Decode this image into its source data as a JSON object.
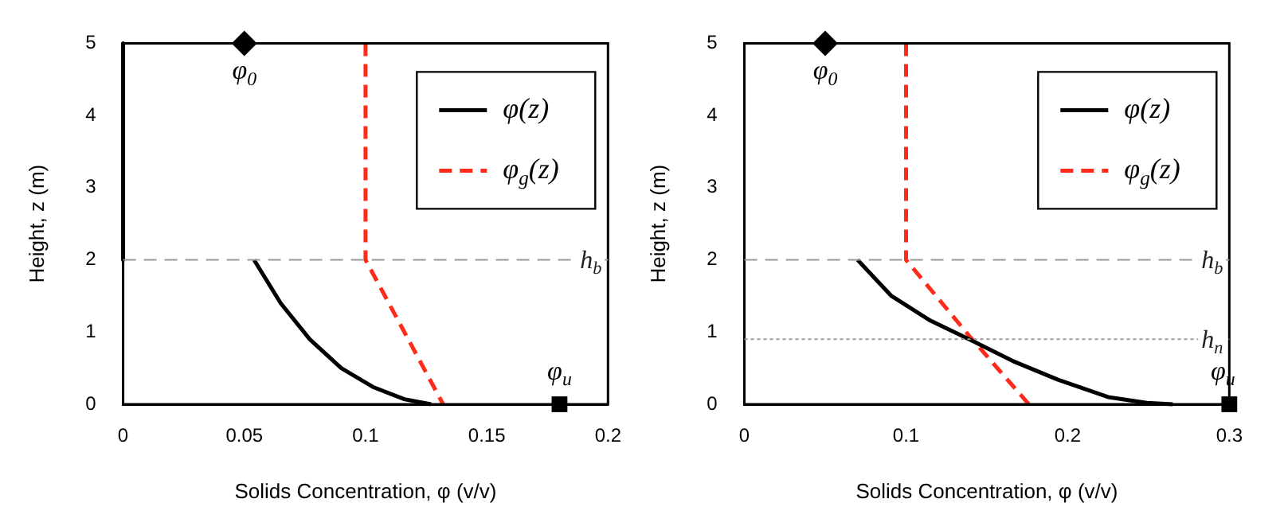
{
  "chart_data": [
    {
      "type": "line",
      "xlabel": "Solids Concentration, φ (v/v)",
      "ylabel": "Height, z (m)",
      "xlim": [
        0,
        0.2
      ],
      "ylim": [
        0,
        5
      ],
      "xticks": [
        0,
        0.05,
        0.1,
        0.15,
        0.2
      ],
      "yticks": [
        0,
        1,
        2,
        3,
        4,
        5
      ],
      "grid": false,
      "legend": "top right",
      "series": [
        {
          "type": "line",
          "color": "#000000",
          "line_style": "solid",
          "x": [
            0,
            0
          ],
          "values": [
            5,
            2
          ]
        },
        {
          "name": "φ(z)",
          "color": "#000000",
          "line_style": "solid",
          "x": [
            0.054,
            0.065,
            0.077,
            0.09,
            0.103,
            0.116,
            0.127
          ],
          "values": [
            2,
            1.4,
            0.9,
            0.5,
            0.24,
            0.07,
            0
          ]
        },
        {
          "name": "φ$_{g}$(z)",
          "color": "#ff2a1a",
          "line_style": "dashed",
          "x": [
            0.1,
            0.1,
            0.108,
            0.116,
            0.124,
            0.132
          ],
          "values": [
            5,
            2,
            1.5,
            1,
            0.5,
            0
          ]
        },
        {
          "type": "scatter",
          "marker": "diamond",
          "color": "#000000",
          "x": [
            0.05
          ],
          "values": [
            5
          ]
        },
        {
          "type": "scatter",
          "marker": "square",
          "color": "#000000",
          "x": [
            0.18
          ],
          "values": [
            0
          ]
        }
      ],
      "ref_lines": [
        {
          "axis": "y",
          "value": 2,
          "label": "h$_{b}$",
          "color": "#999999",
          "line_style": "dashed"
        }
      ],
      "annotations": [
        {
          "text": "φ$_{0}$",
          "x": 0.05,
          "y": 5
        },
        {
          "text": "φ$_{u}$",
          "x": 0.18,
          "y": 0
        }
      ]
    },
    {
      "type": "line",
      "xlabel": "Solids Concentration, φ (v/v)",
      "ylabel": "Height, z (m)",
      "xlim": [
        0,
        0.3
      ],
      "ylim": [
        0,
        5
      ],
      "xticks": [
        0,
        0.1,
        0.2,
        0.3
      ],
      "yticks": [
        0,
        1,
        2,
        3,
        4,
        5
      ],
      "grid": false,
      "legend": "top right",
      "series": [
        {
          "name": "φ(z)",
          "color": "#000000",
          "line_style": "solid",
          "x": [
            0.07,
            0.091,
            0.115,
            0.141,
            0.166,
            0.194,
            0.225,
            0.249,
            0.265
          ],
          "values": [
            2,
            1.5,
            1.16,
            0.88,
            0.6,
            0.34,
            0.1,
            0.02,
            0
          ]
        },
        {
          "name": "φ$_{g}$(z)",
          "color": "#ff2a1a",
          "line_style": "dashed",
          "x": [
            0.1,
            0.1,
            0.139,
            0.176
          ],
          "values": [
            5,
            2,
            0.95,
            0
          ]
        },
        {
          "type": "scatter",
          "marker": "diamond",
          "color": "#000000",
          "x": [
            0.05
          ],
          "values": [
            5
          ]
        },
        {
          "type": "scatter",
          "marker": "square",
          "color": "#000000",
          "x": [
            0.3
          ],
          "values": [
            0
          ]
        }
      ],
      "ref_lines": [
        {
          "axis": "y",
          "value": 2,
          "label": "h$_{b}$",
          "color": "#999999",
          "line_style": "dashed"
        },
        {
          "axis": "y",
          "value": 0.9,
          "label": "h$_{n}$",
          "color": "#999999",
          "line_style": "dotted"
        }
      ],
      "annotations": [
        {
          "text": "φ$_{0}$",
          "x": 0.05,
          "y": 5
        },
        {
          "text": "φ$_{u}$",
          "x": 0.3,
          "y": 0
        }
      ]
    }
  ]
}
